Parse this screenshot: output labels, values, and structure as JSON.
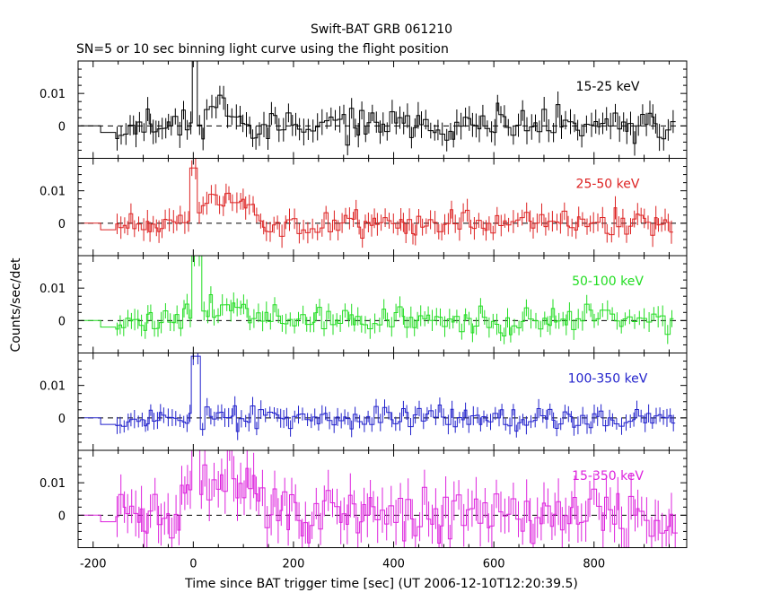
{
  "chart_data": {
    "type": "line",
    "title": "Swift-BAT GRB 061210",
    "subtitle": "SN=5 or 10 sec binning light curve using the flight position",
    "xlabel": "Time since BAT trigger time [sec] (UT 2006-12-10T12:20:39.5)",
    "ylabel": "Counts/sec/det",
    "xlim": [
      -230,
      985
    ],
    "x_ticks": [
      "-200",
      "0",
      "200",
      "400",
      "600",
      "800"
    ],
    "y_ticks": [
      "0.01",
      "0"
    ],
    "grid": false,
    "panels": [
      {
        "label": "15-25 keV",
        "color": "#000000",
        "ylim": [
          -0.01,
          0.02
        ],
        "spike": 0.04,
        "noise": 0.0035,
        "seed": 11,
        "bumps": [
          {
            "x": 45,
            "w": 25,
            "h": 0.009
          }
        ]
      },
      {
        "label": "25-50 keV",
        "color": "#dd2222",
        "ylim": [
          -0.01,
          0.02
        ],
        "spike": 0.017,
        "noise": 0.003,
        "seed": 23,
        "bumps": [
          {
            "x": 60,
            "w": 60,
            "h": 0.008
          }
        ]
      },
      {
        "label": "50-100 keV",
        "color": "#22dd22",
        "ylim": [
          -0.01,
          0.02
        ],
        "spike": 0.02,
        "noise": 0.0028,
        "seed": 37,
        "bumps": [
          {
            "x": 60,
            "w": 70,
            "h": 0.0045
          }
        ]
      },
      {
        "label": "100-350 keV",
        "color": "#2222cc",
        "ylim": [
          -0.01,
          0.02
        ],
        "spike": 0.019,
        "noise": 0.0025,
        "seed": 53,
        "bumps": []
      },
      {
        "label": "15-350 keV",
        "color": "#dd22dd",
        "ylim": [
          -0.01,
          0.02
        ],
        "spike": 0.03,
        "noise": 0.006,
        "seed": 71,
        "bumps": [
          {
            "x": 60,
            "w": 70,
            "h": 0.012
          }
        ]
      }
    ]
  }
}
